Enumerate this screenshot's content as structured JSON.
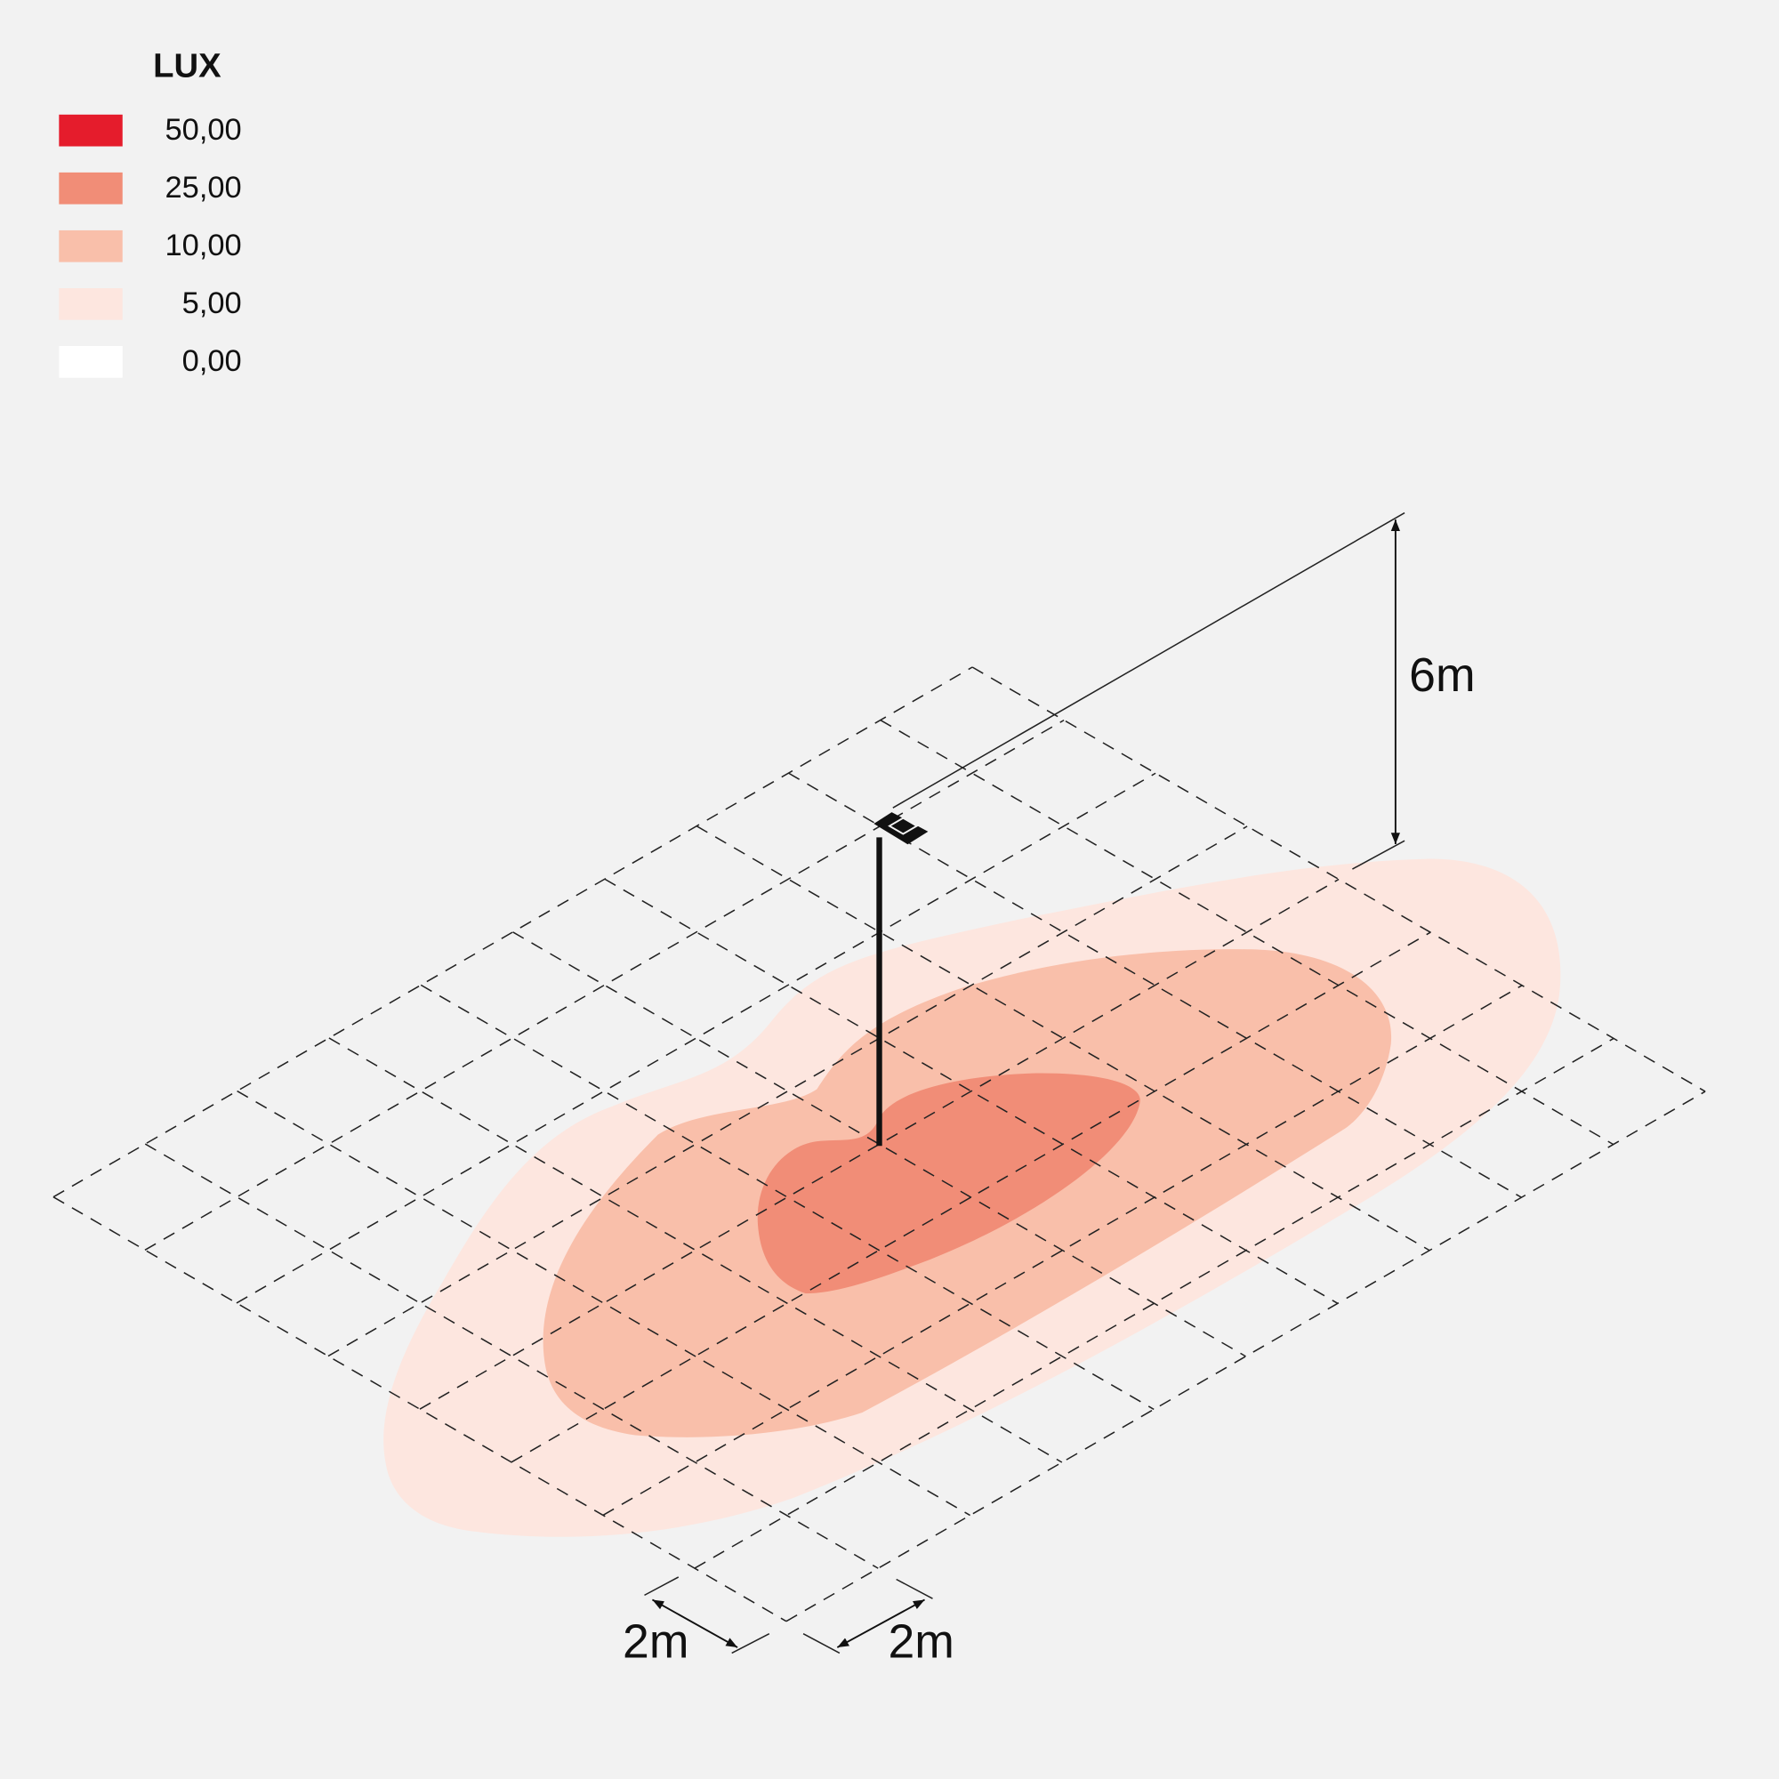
{
  "legend": {
    "title": "LUX",
    "items": [
      {
        "label": "50,00",
        "color": "#e51c2c"
      },
      {
        "label": "25,00",
        "color": "#f18d77"
      },
      {
        "label": "10,00",
        "color": "#f9bfaa"
      },
      {
        "label": "5,00",
        "color": "#fde6df"
      },
      {
        "label": "0,00",
        "color": "#ffffff"
      }
    ]
  },
  "dimensions": {
    "height": "6m",
    "width": "2m",
    "depth": "2m"
  }
}
